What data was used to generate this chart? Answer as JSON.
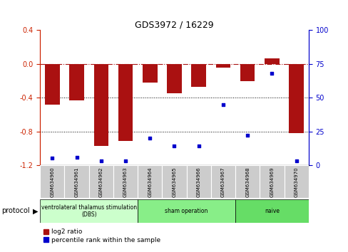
{
  "title": "GDS3972 / 16229",
  "samples": [
    "GSM634960",
    "GSM634961",
    "GSM634962",
    "GSM634963",
    "GSM634964",
    "GSM634965",
    "GSM634966",
    "GSM634967",
    "GSM634968",
    "GSM634969",
    "GSM634970"
  ],
  "log2_ratio": [
    -0.48,
    -0.43,
    -0.97,
    -0.91,
    -0.22,
    -0.35,
    -0.27,
    -0.04,
    -0.2,
    0.07,
    -0.82
  ],
  "percentile_rank": [
    5,
    6,
    3,
    3,
    20,
    14,
    14,
    45,
    22,
    68,
    3
  ],
  "bar_color": "#aa1111",
  "dot_color": "#0000cc",
  "ylim_left": [
    -1.2,
    0.4
  ],
  "ylim_right": [
    0,
    100
  ],
  "yticks_left": [
    -1.2,
    -0.8,
    -0.4,
    0.0,
    0.4
  ],
  "yticks_right": [
    0,
    25,
    50,
    75,
    100
  ],
  "hline_y": 0.0,
  "dotted_lines": [
    -0.4,
    -0.8
  ],
  "groups": [
    {
      "label": "ventrolateral thalamus stimulation\n(DBS)",
      "start": 0,
      "end": 4,
      "color": "#ccffcc"
    },
    {
      "label": "sham operation",
      "start": 4,
      "end": 8,
      "color": "#88ee88"
    },
    {
      "label": "naive",
      "start": 8,
      "end": 11,
      "color": "#66dd66"
    }
  ],
  "protocol_label": "protocol",
  "legend_log2": "log2 ratio",
  "legend_pct": "percentile rank within the sample",
  "bg_color": "#ffffff",
  "plot_bg": "#ffffff",
  "tick_label_color_left": "#cc2200",
  "tick_label_color_right": "#0000cc",
  "bar_width": 0.6,
  "xlim": [
    -0.5,
    10.5
  ]
}
